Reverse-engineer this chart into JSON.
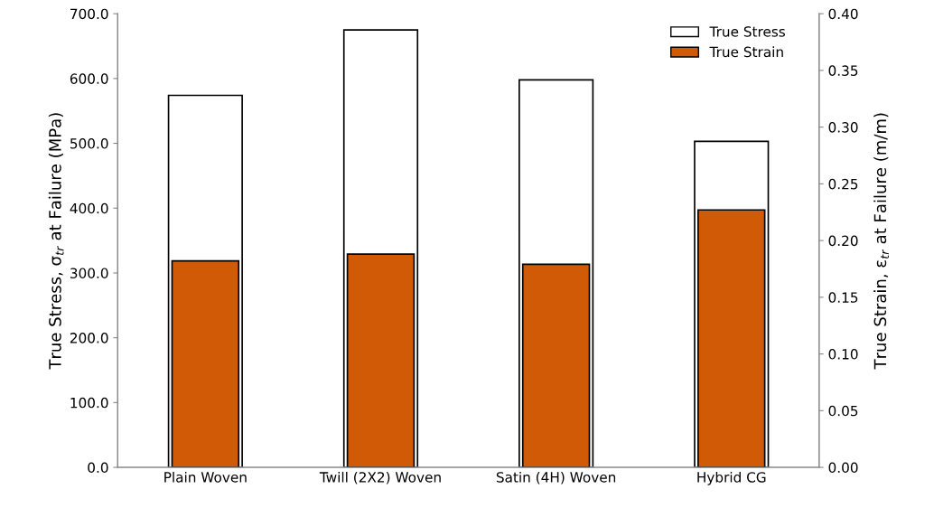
{
  "chart_data": {
    "type": "bar",
    "categories": [
      "Plain Woven",
      "Twill (2X2) Woven",
      "Satin (4H) Woven",
      "Hybrid CG"
    ],
    "series": [
      {
        "name": "True Stress",
        "color": "#ffffff",
        "values": [
          574,
          675,
          598,
          503
        ]
      },
      {
        "name": "True Strain",
        "color": "#d05a05",
        "axis": "y2",
        "values": [
          0.182,
          0.188,
          0.179,
          0.227
        ]
      }
    ],
    "ylabel": "True Stress, σ$_{tr}$ at Failure (MPa)",
    "y2label": "True Strain, ε$_{tr}$ at Failure (m/m)",
    "ylim": [
      0,
      700
    ],
    "yticks": [
      {
        "value": 0,
        "label": "0.0"
      },
      {
        "value": 100,
        "label": "100.0"
      },
      {
        "value": 200,
        "label": "200.0"
      },
      {
        "value": 300,
        "label": "300.0"
      },
      {
        "value": 400,
        "label": "400.0"
      },
      {
        "value": 500,
        "label": "500.0"
      },
      {
        "value": 600,
        "label": "600.0"
      },
      {
        "value": 700,
        "label": "700.0"
      }
    ],
    "y2lim": [
      0,
      0.4
    ],
    "y2ticks": [
      {
        "value": 0,
        "label": "0.00"
      },
      {
        "value": 0.05,
        "label": "0.05"
      },
      {
        "value": 0.1,
        "label": "0.10"
      },
      {
        "value": 0.15,
        "label": "0.15"
      },
      {
        "value": 0.2,
        "label": "0.20"
      },
      {
        "value": 0.25,
        "label": "0.25"
      },
      {
        "value": 0.3,
        "label": "0.30"
      },
      {
        "value": 0.35,
        "label": "0.35"
      },
      {
        "value": 0.4,
        "label": "0.40"
      }
    ],
    "legend": "top right",
    "grid": false
  }
}
